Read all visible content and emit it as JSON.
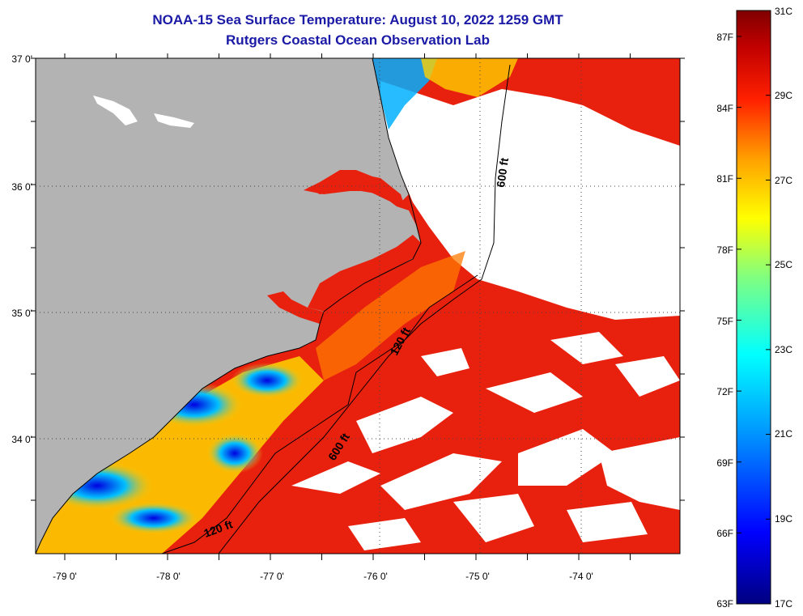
{
  "title": {
    "line1": "NOAA-15 Sea Surface Temperature:  August 10, 2022 1259 GMT",
    "line2": "Rutgers Coastal Ocean Observation Lab"
  },
  "axes": {
    "x_ticks": [
      "-79 0'",
      "-78 0'",
      "-77 0'",
      "-76 0'",
      "-75 0'",
      "-74 0'"
    ],
    "y_ticks": [
      "37 0'",
      "36 0'",
      "35 0'",
      "34 0'"
    ]
  },
  "colorbar": {
    "fahrenheit": [
      "87F",
      "84F",
      "81F",
      "78F",
      "75F",
      "72F",
      "69F",
      "66F",
      "63F"
    ],
    "celsius": [
      "31C",
      "29C",
      "27C",
      "25C",
      "23C",
      "21C",
      "19C",
      "17C"
    ],
    "colors": [
      "#000080",
      "#0000ff",
      "#00a0ff",
      "#00ffff",
      "#80ff80",
      "#ffff00",
      "#ffa000",
      "#ff2000",
      "#c00000",
      "#800000"
    ]
  },
  "contour_labels": {
    "c600_north": "600 ft",
    "c120_mid": "120 ft",
    "c600_south": "600 ft",
    "c120_south": "120 ft"
  },
  "colors": {
    "land": "#b3b3b3",
    "cloud": "#ffffff",
    "warm": "#e8200e",
    "title": "#1a1aa6"
  }
}
